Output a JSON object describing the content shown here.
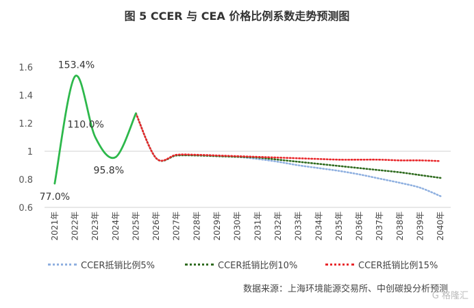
{
  "title": "图 5 CCER 与 CEA 价格比例系数走势预测图",
  "source": "数据来源：上海环境能源交易所、中创碳投分析预测",
  "watermark": "G 格隆汇",
  "chart_data": {
    "type": "line",
    "categories": [
      "2021年",
      "2022年",
      "2023年",
      "2024年",
      "2025年",
      "2026年",
      "2027年",
      "2028年",
      "2029年",
      "2030年",
      "2031年",
      "2032年",
      "2033年",
      "2034年",
      "2035年",
      "2036年",
      "2037年",
      "2038年",
      "2039年",
      "2040年"
    ],
    "ylim": [
      0.6,
      1.6
    ],
    "yticks": [
      "0.6",
      "0.8",
      "1",
      "1.2",
      "1.4",
      "1.6"
    ],
    "colors": {
      "historical": "#2db84b",
      "ccer5": "#8fb0e0",
      "ccer10": "#2f6b1f",
      "ccer15": "#e8262a"
    },
    "historical": {
      "values": [
        0.77,
        1.534,
        1.1,
        0.958,
        1.27
      ],
      "data_labels": [
        "77.0%",
        "153.4%",
        "110.0%",
        "95.8%",
        ""
      ]
    },
    "series": [
      {
        "name": "CCER抵销比例5%",
        "values": [
          null,
          null,
          null,
          null,
          1.27,
          0.95,
          0.97,
          0.97,
          0.965,
          0.96,
          0.945,
          0.925,
          0.9,
          0.88,
          0.86,
          0.835,
          0.805,
          0.775,
          0.74,
          0.68
        ]
      },
      {
        "name": "CCER抵销比例10%",
        "values": [
          null,
          null,
          null,
          null,
          1.27,
          0.95,
          0.97,
          0.97,
          0.965,
          0.96,
          0.955,
          0.94,
          0.925,
          0.91,
          0.895,
          0.88,
          0.865,
          0.85,
          0.83,
          0.81
        ]
      },
      {
        "name": "CCER抵销比例15%",
        "values": [
          null,
          null,
          null,
          null,
          1.27,
          0.95,
          0.975,
          0.975,
          0.97,
          0.965,
          0.96,
          0.955,
          0.95,
          0.945,
          0.94,
          0.94,
          0.94,
          0.935,
          0.935,
          0.93
        ]
      }
    ],
    "grid": "reference line at 1 only",
    "legend": "bottom"
  }
}
